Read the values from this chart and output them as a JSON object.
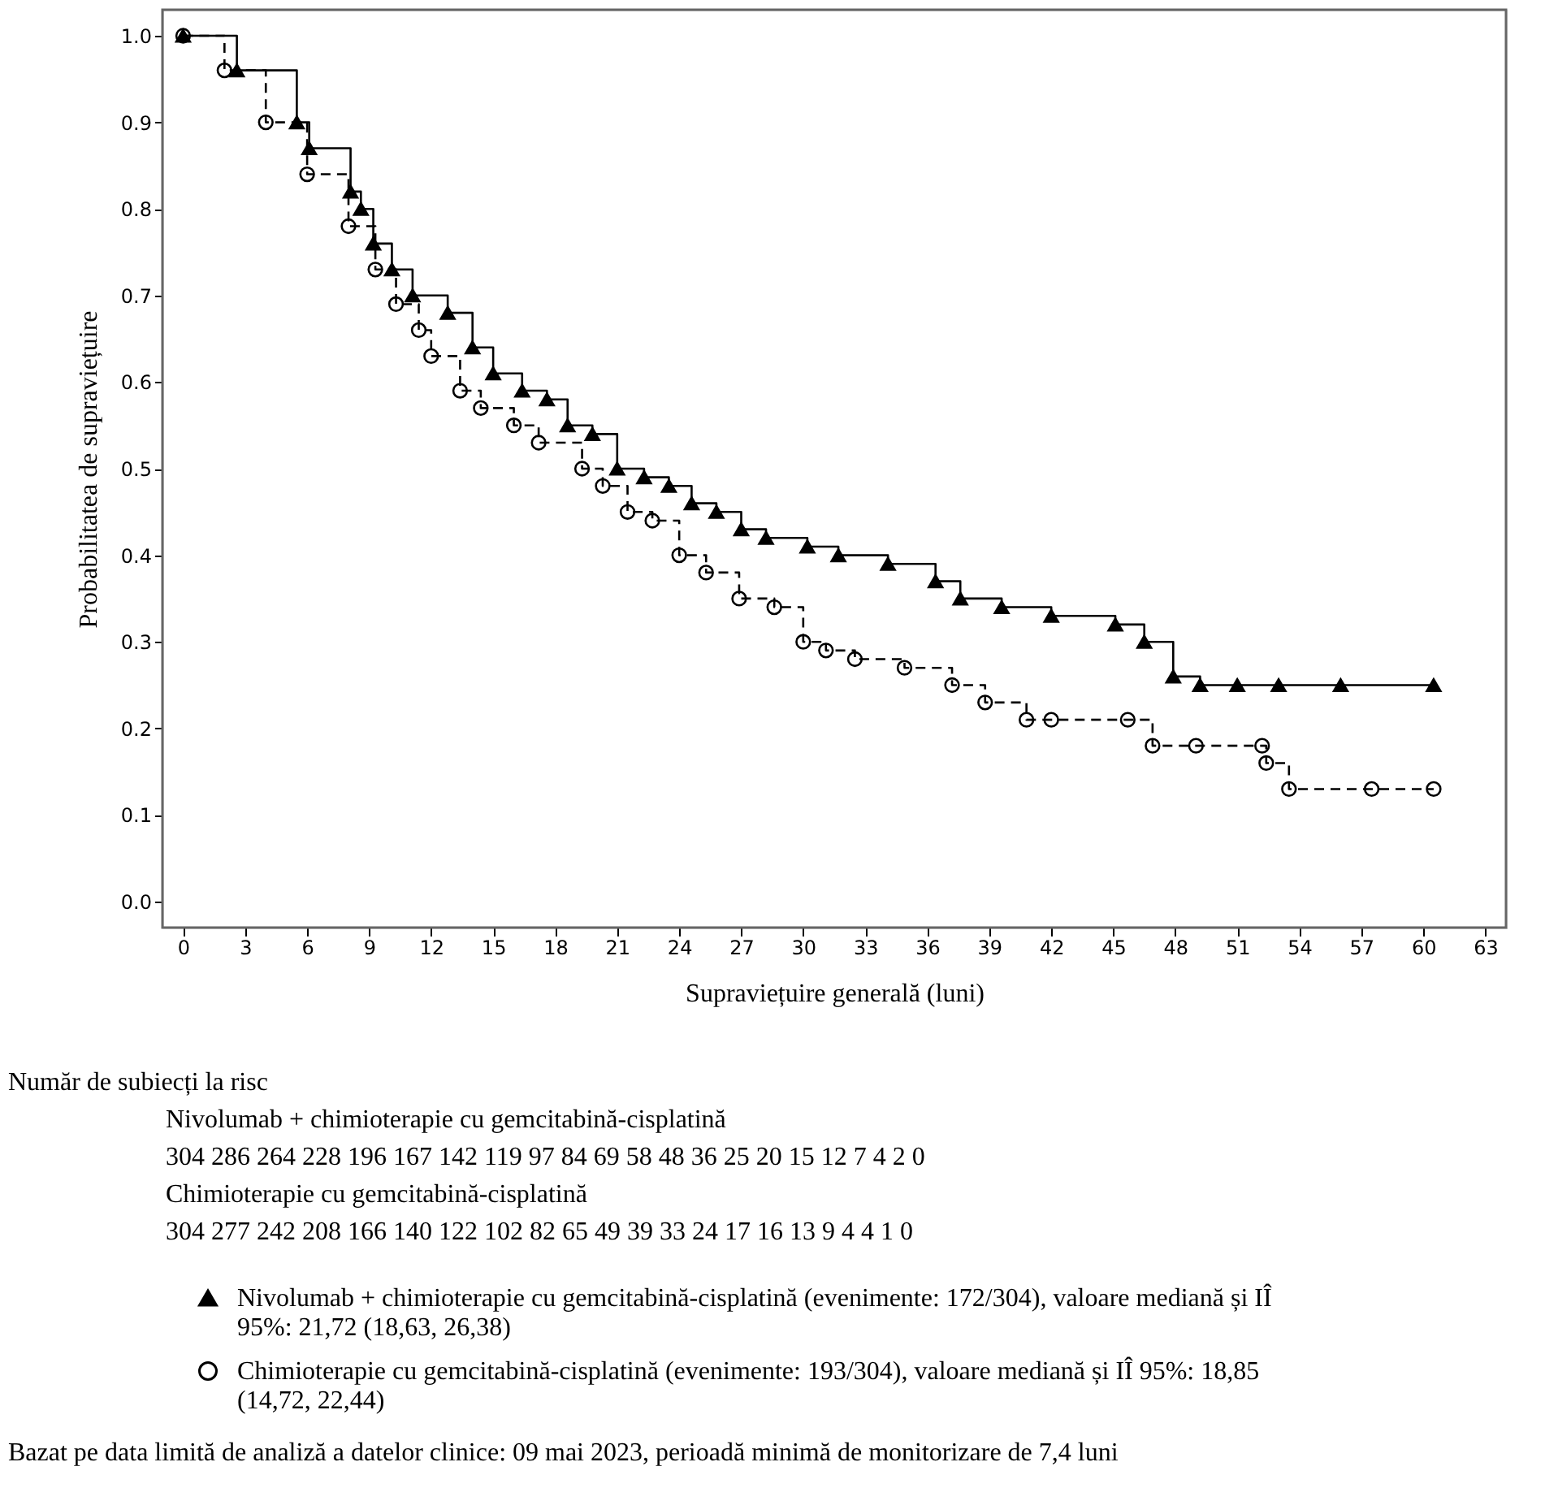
{
  "chart_data": {
    "type": "step",
    "xlabel": "Supraviețuire generală (luni)",
    "ylabel": "Probabilitatea de supraviețuire",
    "xlim": [
      -1,
      64
    ],
    "xticks": [
      0,
      3,
      6,
      9,
      12,
      15,
      18,
      21,
      24,
      27,
      30,
      33,
      36,
      39,
      42,
      45,
      48,
      51,
      54,
      57,
      60,
      63
    ],
    "ylim": [
      -0.03,
      1.03
    ],
    "yticks": [
      {
        "value": 0,
        "label": "0.0"
      },
      0.1,
      0.2,
      0.3,
      0.4,
      0.5,
      0.6,
      0.7,
      0.8,
      0.9,
      {
        "value": 1,
        "label": "1.0"
      }
    ],
    "legend": "bottom",
    "grid": false,
    "series": [
      {
        "name": "Nivolumab + chimioterapie cu gemcitabină-cisplatină (evenimente: 172/304), valoare mediană și IÎ 95%: 21,72 (18,63, 26,38)",
        "color": "#000000",
        "marker": "triangle",
        "line_style": "solid",
        "x": [
          0,
          2.6,
          5.5,
          6.1,
          8.1,
          8.6,
          9.2,
          10.1,
          11.1,
          12.8,
          14.0,
          15.0,
          16.4,
          17.6,
          18.6,
          19.8,
          21.0,
          22.3,
          23.5,
          24.6,
          25.8,
          27.0,
          28.2,
          30.2,
          31.7,
          34.1,
          36.4,
          37.6,
          39.6,
          42.0,
          45.1,
          46.5,
          47.9,
          49.2,
          51.0,
          53.0,
          56.0,
          60.5
        ],
        "values": [
          1.0,
          0.96,
          0.9,
          0.87,
          0.82,
          0.8,
          0.76,
          0.73,
          0.7,
          0.68,
          0.64,
          0.61,
          0.59,
          0.58,
          0.55,
          0.54,
          0.5,
          0.49,
          0.48,
          0.46,
          0.45,
          0.43,
          0.42,
          0.41,
          0.4,
          0.39,
          0.37,
          0.35,
          0.34,
          0.33,
          0.32,
          0.3,
          0.26,
          0.25,
          0.25,
          0.25,
          0.25,
          0.25
        ]
      },
      {
        "name": "Chimioterapie cu gemcitabină-cisplatină (evenimente: 193/304), valoare mediană și IÎ 95%: 18,85 (14,72, 22,44)",
        "color": "#000000",
        "marker": "circle",
        "line_style": "dashed",
        "x": [
          0,
          2.0,
          4.0,
          6.0,
          8.0,
          9.3,
          10.3,
          11.4,
          12.0,
          13.4,
          14.4,
          16.0,
          17.2,
          19.3,
          20.3,
          21.5,
          22.7,
          24.0,
          25.3,
          26.9,
          28.6,
          30.0,
          31.1,
          32.5,
          34.9,
          37.2,
          38.8,
          40.8,
          42.0,
          45.7,
          46.9,
          49.0,
          52.2,
          52.4,
          53.5,
          57.5,
          60.5
        ],
        "values": [
          1.0,
          0.96,
          0.9,
          0.84,
          0.78,
          0.73,
          0.69,
          0.66,
          0.63,
          0.59,
          0.57,
          0.55,
          0.53,
          0.5,
          0.48,
          0.45,
          0.44,
          0.4,
          0.38,
          0.35,
          0.34,
          0.3,
          0.29,
          0.28,
          0.27,
          0.25,
          0.23,
          0.21,
          0.21,
          0.21,
          0.18,
          0.18,
          0.18,
          0.16,
          0.13,
          0.13,
          0.13
        ]
      }
    ],
    "annotations": [
      "Număr de subiecți la risc",
      "Nivolumab + chimioterapie cu gemcitabină-cisplatină",
      "304 286 264 228 196 167 142 119 97 84 69 58 48 36 25 20 15 12 7 4 2 0",
      "Chimioterapie cu gemcitabină-cisplatină",
      "304 277 242 208 166 140 122 102 82 65 49 39 33 24 17 16 13 9 4 4 1 0",
      "Bazat pe data limită de analiză a datelor clinice: 09 mai 2023, perioadă minimă de monitorizare de 7,4 luni"
    ]
  }
}
